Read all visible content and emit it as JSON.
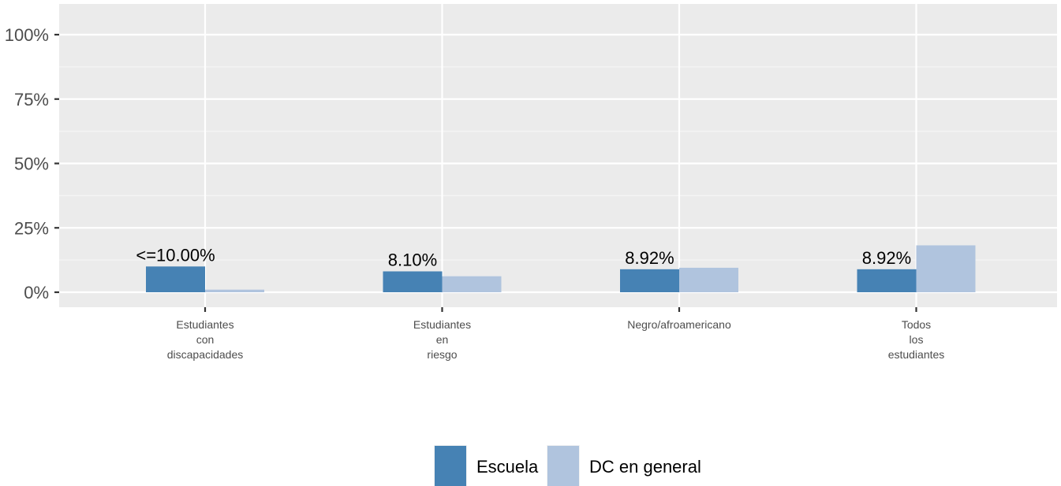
{
  "chart_data": {
    "type": "bar",
    "title": "",
    "xlabel": "",
    "ylabel": "",
    "ylim": [
      0,
      1.1
    ],
    "y_ticks": [
      {
        "value": 0,
        "label": "0%"
      },
      {
        "value": 0.25,
        "label": "25%"
      },
      {
        "value": 0.5,
        "label": "50%"
      },
      {
        "value": 0.75,
        "label": "75%"
      },
      {
        "value": 1.0,
        "label": "100%"
      }
    ],
    "categories": [
      [
        "Estudiantes",
        "con",
        "discapacidades"
      ],
      [
        "Estudiantes",
        "en",
        "riesgo"
      ],
      [
        "Negro/afroamericano"
      ],
      [
        "Todos",
        "los",
        "estudiantes"
      ]
    ],
    "series": [
      {
        "name": "Escuela",
        "color": "#4682b4",
        "values": [
          0.1,
          0.081,
          0.0892,
          0.0892
        ]
      },
      {
        "name": "DC en general",
        "color": "#b0c4de",
        "values": [
          0.01,
          0.062,
          0.095,
          0.182
        ]
      }
    ],
    "data_labels": [
      "<=10.00%",
      "8.10%",
      "8.92%",
      "8.92%"
    ],
    "grid": true,
    "panel_background": "#ebebeb",
    "grid_color": "#ffffff",
    "legend": {
      "position": "bottom",
      "items": [
        "Escuela",
        "DC en general"
      ]
    }
  }
}
